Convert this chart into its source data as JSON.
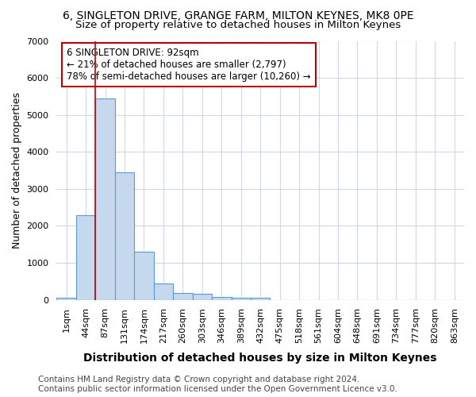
{
  "title1": "6, SINGLETON DRIVE, GRANGE FARM, MILTON KEYNES, MK8 0PE",
  "title2": "Size of property relative to detached houses in Milton Keynes",
  "xlabel": "Distribution of detached houses by size in Milton Keynes",
  "ylabel": "Number of detached properties",
  "footer1": "Contains HM Land Registry data © Crown copyright and database right 2024.",
  "footer2": "Contains public sector information licensed under the Open Government Licence v3.0.",
  "annotation_title": "6 SINGLETON DRIVE: 92sqm",
  "annotation_line2": "← 21% of detached houses are smaller (2,797)",
  "annotation_line3": "78% of semi-detached houses are larger (10,260) →",
  "bar_labels": [
    "1sqm",
    "44sqm",
    "87sqm",
    "131sqm",
    "174sqm",
    "217sqm",
    "260sqm",
    "303sqm",
    "346sqm",
    "389sqm",
    "432sqm",
    "475sqm",
    "518sqm",
    "561sqm",
    "604sqm",
    "648sqm",
    "691sqm",
    "734sqm",
    "777sqm",
    "820sqm",
    "863sqm"
  ],
  "bar_values": [
    60,
    2280,
    5450,
    3450,
    1310,
    450,
    190,
    165,
    80,
    55,
    45,
    0,
    0,
    0,
    0,
    0,
    0,
    0,
    0,
    0,
    0
  ],
  "bar_color": "#c5d8ed",
  "bar_edge_color": "#5b9bd5",
  "vline_color": "#c00000",
  "ylim": [
    0,
    7000
  ],
  "bg_color": "#ffffff",
  "plot_bg_color": "#ffffff",
  "annotation_box_color": "#ffffff",
  "annotation_box_edge": "#c00000",
  "grid_color": "#d0d8e8",
  "title1_fontsize": 10,
  "title2_fontsize": 9.5,
  "xlabel_fontsize": 10,
  "ylabel_fontsize": 9,
  "tick_fontsize": 8,
  "footer_fontsize": 7.5,
  "annotation_fontsize": 8.5
}
